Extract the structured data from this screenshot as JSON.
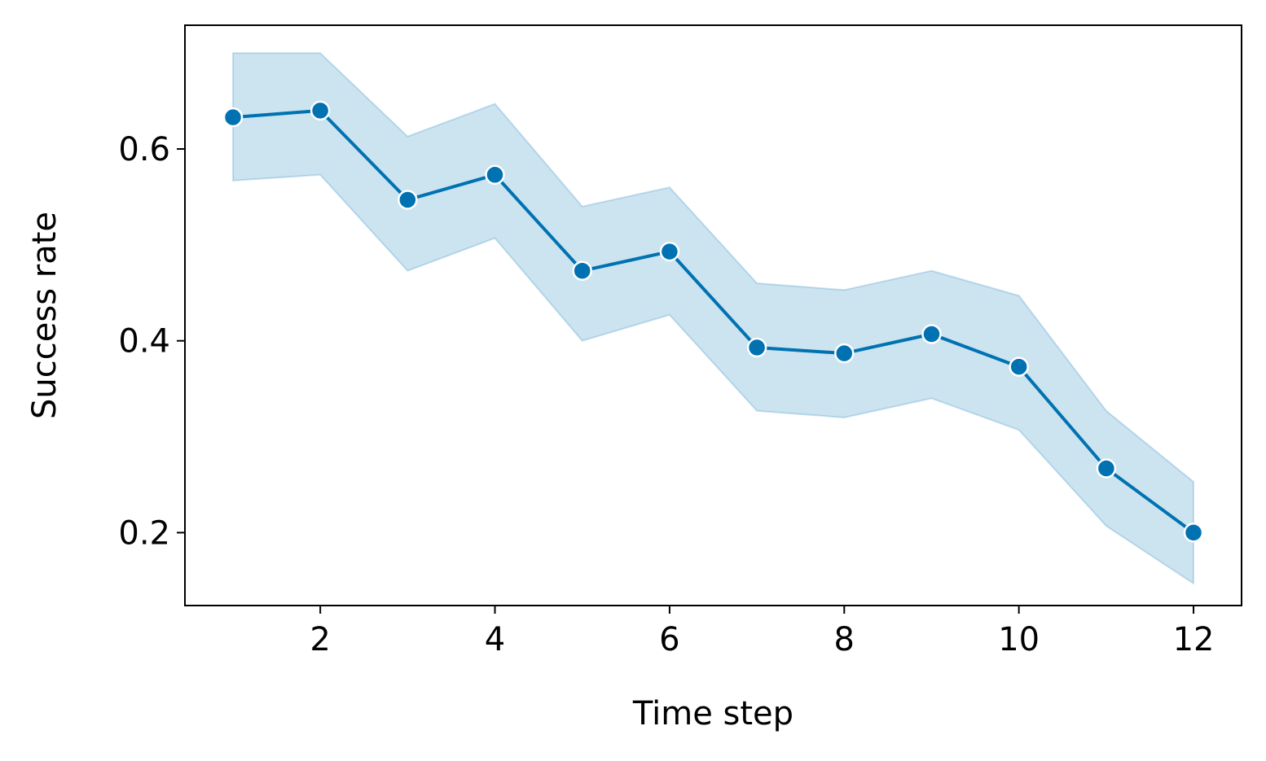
{
  "chart_data": {
    "type": "line",
    "xlabel": "Time step",
    "ylabel": "Success rate",
    "xlim": [
      0.45,
      12.55
    ],
    "ylim": [
      0.124,
      0.729
    ],
    "xticks": [
      2,
      4,
      6,
      8,
      10,
      12
    ],
    "xtick_labels": [
      "2",
      "4",
      "6",
      "8",
      "10",
      "12"
    ],
    "yticks": [
      0.2,
      0.4,
      0.6
    ],
    "ytick_labels": [
      "0.2",
      "0.4",
      "0.6"
    ],
    "grid": false,
    "legend": "none",
    "colors": {
      "line": "#0072b2",
      "band": "#0072b2",
      "marker_edge": "#ffffff",
      "axes": "#000000"
    },
    "series": [
      {
        "x": [
          1,
          2,
          3,
          4,
          5,
          6,
          7,
          8,
          9,
          10,
          11,
          12
        ],
        "y": [
          0.633,
          0.64,
          0.547,
          0.573,
          0.473,
          0.493,
          0.393,
          0.387,
          0.407,
          0.373,
          0.267,
          0.2
        ],
        "lower": [
          0.567,
          0.573,
          0.473,
          0.507,
          0.4,
          0.427,
          0.327,
          0.32,
          0.34,
          0.307,
          0.207,
          0.147
        ],
        "upper": [
          0.7,
          0.7,
          0.613,
          0.647,
          0.54,
          0.56,
          0.46,
          0.453,
          0.473,
          0.447,
          0.327,
          0.253
        ]
      }
    ]
  }
}
